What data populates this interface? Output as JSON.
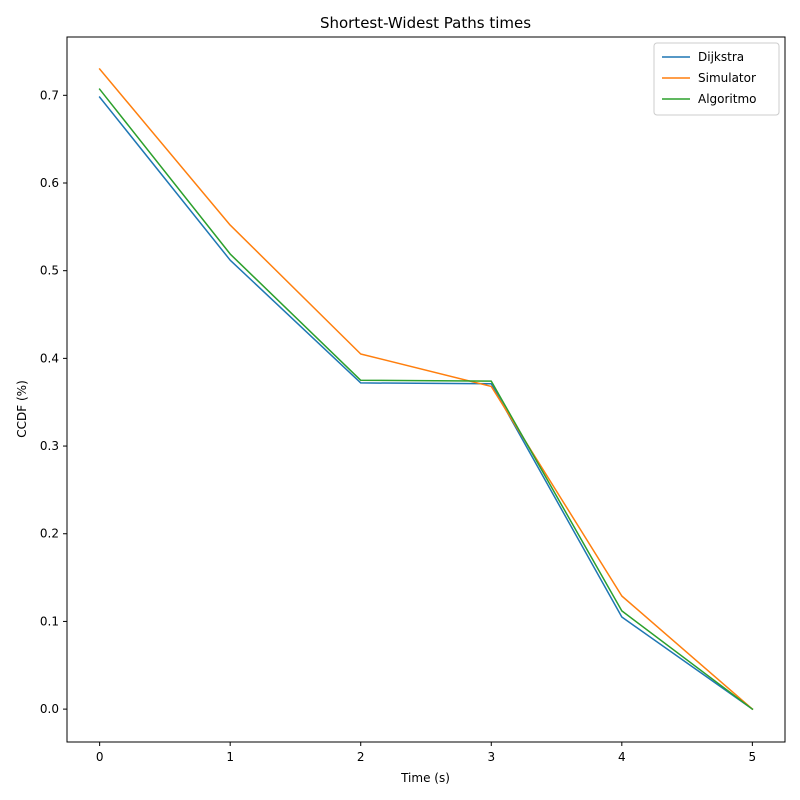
{
  "chart_data": {
    "type": "line",
    "title": "Shortest-Widest Paths times",
    "xlabel": "Time (s)",
    "ylabel": "CCDF (%)",
    "x": [
      0,
      1,
      2,
      3,
      4,
      5
    ],
    "xticks": [
      0,
      1,
      2,
      3,
      4,
      5
    ],
    "yticks": [
      0.0,
      0.1,
      0.2,
      0.3,
      0.4,
      0.5,
      0.6,
      0.7
    ],
    "xlim": [
      -0.25,
      5.25
    ],
    "ylim": [
      -0.0375,
      0.7665
    ],
    "grid": false,
    "legend_position": "top-right",
    "series": [
      {
        "name": "Dijkstra",
        "color": "#1f77b4",
        "values": [
          0.698,
          0.512,
          0.372,
          0.371,
          0.105,
          0.0
        ]
      },
      {
        "name": "Simulator",
        "color": "#ff7f0e",
        "values": [
          0.73,
          0.552,
          0.405,
          0.368,
          0.129,
          0.0
        ]
      },
      {
        "name": "Algoritmo",
        "color": "#2ca02c",
        "values": [
          0.707,
          0.519,
          0.375,
          0.374,
          0.112,
          0.0
        ]
      }
    ]
  }
}
